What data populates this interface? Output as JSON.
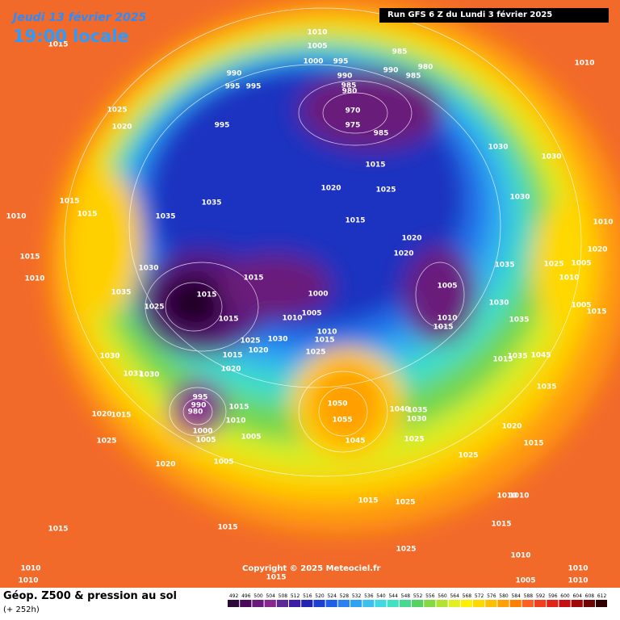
{
  "header": {
    "date": "Jeudi 13 février 2025",
    "time": "19:00 locale",
    "run": "Run GFS 6 Z du Lundi 3 février 2025"
  },
  "copyright": "Copyright © 2025 Meteociel.fr",
  "footer": {
    "title": "Géop. Z500 & pression au sol",
    "subtitle": "(+ 252h)"
  },
  "legend": {
    "values": [
      492,
      496,
      500,
      504,
      508,
      512,
      516,
      520,
      524,
      528,
      532,
      536,
      540,
      544,
      548,
      552,
      556,
      560,
      564,
      568,
      572,
      576,
      580,
      584,
      588,
      592,
      596,
      600,
      604,
      608,
      612
    ],
    "colors": [
      "#2a0838",
      "#4a0c5a",
      "#6a1a7a",
      "#86288e",
      "#5a2898",
      "#3c1ea6",
      "#2424b4",
      "#1e40d0",
      "#2060e6",
      "#2a82f2",
      "#30a2f2",
      "#3cc0f0",
      "#40d8e2",
      "#40e2c2",
      "#44da92",
      "#56d262",
      "#84da40",
      "#b2e232",
      "#e0f022",
      "#fff000",
      "#ffd800",
      "#ffbe00",
      "#ffa000",
      "#ff8000",
      "#ff6020",
      "#f04020",
      "#e02418",
      "#c41010",
      "#a00808",
      "#700404",
      "#300000"
    ]
  },
  "pressure_labels": [
    1010,
    1005,
    985,
    1000,
    995,
    990,
    995,
    995,
    990,
    990,
    980,
    985,
    985,
    980,
    970,
    975,
    985,
    995,
    1025,
    1020,
    1015,
    1020,
    1025,
    1030,
    1030,
    1030,
    1035,
    1035,
    1015,
    1015,
    1015,
    1010,
    1015,
    1010,
    1020,
    1020,
    1035,
    1025,
    1005,
    1020,
    1010,
    1010,
    1030,
    1035,
    1025,
    1015,
    1015,
    1000,
    1005,
    1005,
    1010,
    1015,
    1030,
    1035,
    1005,
    1015,
    1010,
    1015,
    1010,
    1025,
    1030,
    1020,
    1015,
    1015,
    1020,
    1025,
    1030,
    1031,
    1030,
    1015,
    1035,
    1045,
    1035,
    995,
    990,
    980,
    1015,
    1010,
    1050,
    1055,
    1040,
    1035,
    1030,
    1045,
    1000,
    1005,
    1005,
    1025,
    1020,
    1015,
    1025,
    1020,
    1015,
    1020,
    1005,
    1025,
    1010,
    1010,
    1015,
    1025,
    1015,
    1015,
    1015,
    1025,
    1010,
    1010,
    1010,
    1015,
    1005,
    1010,
    1010,
    1010,
    1015
  ]
}
